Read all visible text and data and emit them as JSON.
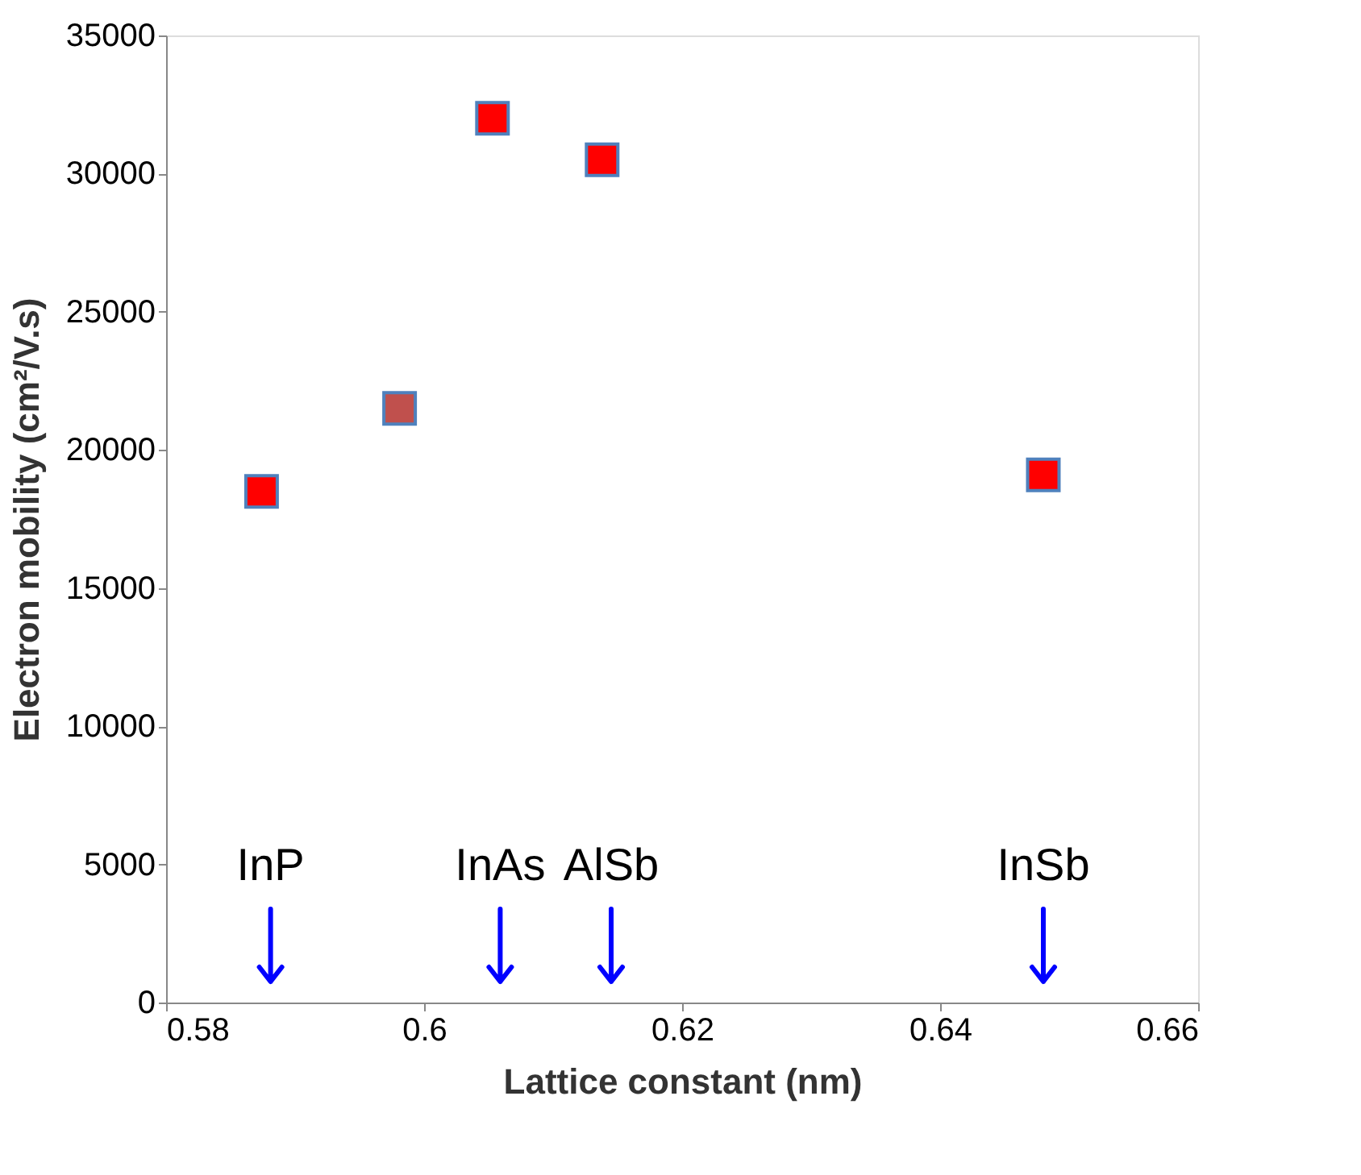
{
  "chart_data": {
    "type": "scatter",
    "xlabel": "Lattice constant (nm)",
    "ylabel": "Electron mobility (cm²/V.s)",
    "x": [
      0.5874,
      0.5981,
      0.6053,
      0.6138,
      0.648
    ],
    "values": [
      18500,
      21500,
      32000,
      30500,
      19100
    ],
    "colors": [
      "#ff0000",
      "#c0504d",
      "#ff0000",
      "#ff0000",
      "#ff0000"
    ],
    "marker": "square",
    "grid": false,
    "legend": false,
    "xlim": [
      0.58,
      0.66
    ],
    "xticks": [
      {
        "value": 0.58,
        "label": "0.58"
      },
      {
        "value": 0.6,
        "label": "0.6"
      },
      {
        "value": 0.62,
        "label": "0.62"
      },
      {
        "value": 0.64,
        "label": "0.64"
      },
      {
        "value": 0.66,
        "label": "0.66"
      }
    ],
    "ylim": [
      0,
      35000
    ],
    "yticks": [
      0,
      5000,
      10000,
      15000,
      20000,
      25000,
      30000,
      35000
    ],
    "ref_lines": [
      {
        "axis": "x",
        "value": 0.5881,
        "label": "InP",
        "color": "#0000ff"
      },
      {
        "axis": "x",
        "value": 0.6059,
        "label": "InAs",
        "color": "#0000ff"
      },
      {
        "axis": "x",
        "value": 0.6145,
        "label": "AlSb",
        "color": "#0000ff"
      },
      {
        "axis": "x",
        "value": 0.648,
        "label": "InSb",
        "color": "#0000ff"
      }
    ]
  }
}
